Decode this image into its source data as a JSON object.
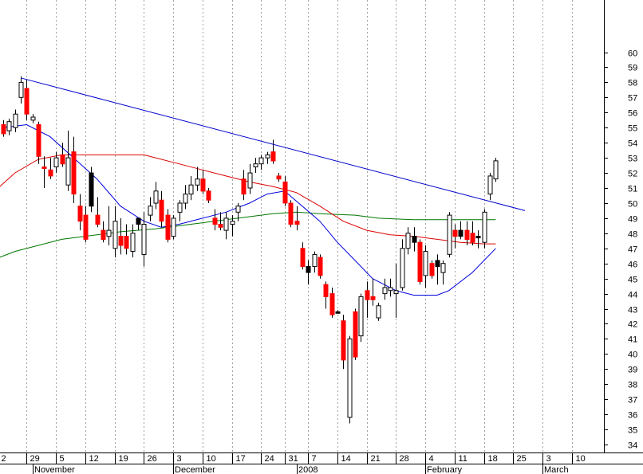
{
  "chart_data": {
    "type": "candlestick",
    "title": "",
    "ylim": [
      34,
      61
    ],
    "y_ticks": [
      34,
      35,
      36,
      37,
      38,
      39,
      40,
      41,
      42,
      43,
      44,
      45,
      46,
      47,
      48,
      49,
      50,
      51,
      52,
      53,
      54,
      55,
      56,
      57,
      58,
      59,
      60
    ],
    "y_tick_labels": [
      "34",
      "35",
      "36",
      "37",
      "38",
      "39",
      "40",
      "41",
      "42",
      "43",
      "44",
      "45",
      "46",
      "47",
      "48",
      "49",
      "50",
      "51",
      "52",
      "53",
      "54",
      "55",
      "56",
      "57",
      "58",
      "59",
      "60"
    ],
    "grid": "vertical dotted",
    "x_ticks": [
      {
        "label": "2",
        "slot": -1
      },
      {
        "label": "29",
        "slot": 4
      },
      {
        "label": "5",
        "slot": 9
      },
      {
        "label": "12",
        "slot": 14
      },
      {
        "label": "19",
        "slot": 19
      },
      {
        "label": "26",
        "slot": 24
      },
      {
        "label": "3",
        "slot": 29
      },
      {
        "label": "10",
        "slot": 34
      },
      {
        "label": "17",
        "slot": 39
      },
      {
        "label": "24",
        "slot": 44
      },
      {
        "label": "31",
        "slot": 48
      },
      {
        "label": "7",
        "slot": 52
      },
      {
        "label": "14",
        "slot": 57
      },
      {
        "label": "21",
        "slot": 62
      },
      {
        "label": "28",
        "slot": 67
      },
      {
        "label": "4",
        "slot": 72
      },
      {
        "label": "11",
        "slot": 77
      },
      {
        "label": "18",
        "slot": 82
      },
      {
        "label": "25",
        "slot": 87
      },
      {
        "label": "3",
        "slot": 92
      },
      {
        "label": "10",
        "slot": 97
      }
    ],
    "month_labels": [
      {
        "label": "November",
        "slot": 5
      },
      {
        "label": "December",
        "slot": 29
      },
      {
        "label": "2008",
        "slot": 50
      },
      {
        "label": "February",
        "slot": 72
      },
      {
        "label": "March",
        "slot": 92
      }
    ],
    "colors": {
      "up": "#ffffff",
      "down": "#ff0000",
      "special": "#000000",
      "wick": "#000000",
      "trendline": "#0000cc",
      "ma_short": "#0000dd",
      "ma_mid": "#dd0000",
      "ma_long": "#007700",
      "grid": "#a0a0a0"
    },
    "candles": [
      {
        "x": 0,
        "o": 54.6,
        "h": 55.5,
        "l": 54.4,
        "c": 55.2,
        "k": "down"
      },
      {
        "x": 1,
        "o": 54.8,
        "h": 55.6,
        "l": 54.5,
        "c": 55.4,
        "k": "up"
      },
      {
        "x": 2,
        "o": 55.0,
        "h": 56.2,
        "l": 54.7,
        "c": 55.9,
        "k": "up"
      },
      {
        "x": 3,
        "o": 57.0,
        "h": 58.4,
        "l": 56.6,
        "c": 58.0,
        "k": "up"
      },
      {
        "x": 4,
        "o": 57.6,
        "h": 58.2,
        "l": 55.5,
        "c": 55.9,
        "k": "down"
      },
      {
        "x": 5,
        "o": 55.7,
        "h": 55.9,
        "l": 55.3,
        "c": 55.5,
        "k": "up"
      },
      {
        "x": 6,
        "o": 55.2,
        "h": 55.4,
        "l": 52.6,
        "c": 53.1,
        "k": "down"
      },
      {
        "x": 7,
        "o": 52.4,
        "h": 53.1,
        "l": 51.0,
        "c": 52.3,
        "k": "down"
      },
      {
        "x": 8,
        "o": 52.2,
        "h": 53.0,
        "l": 51.6,
        "c": 51.8,
        "k": "down"
      },
      {
        "x": 9,
        "o": 52.4,
        "h": 53.4,
        "l": 52.0,
        "c": 53.0,
        "k": "up"
      },
      {
        "x": 10,
        "o": 53.2,
        "h": 54.0,
        "l": 52.4,
        "c": 52.6,
        "k": "down"
      },
      {
        "x": 11,
        "o": 51.2,
        "h": 54.8,
        "l": 50.8,
        "c": 53.0,
        "k": "up"
      },
      {
        "x": 12,
        "o": 53.4,
        "h": 54.4,
        "l": 50.0,
        "c": 50.6,
        "k": "down"
      },
      {
        "x": 13,
        "o": 49.8,
        "h": 50.6,
        "l": 48.2,
        "c": 48.8,
        "k": "down"
      },
      {
        "x": 14,
        "o": 49.2,
        "h": 49.8,
        "l": 47.4,
        "c": 47.6,
        "k": "down"
      },
      {
        "x": 15,
        "o": 49.8,
        "h": 52.4,
        "l": 49.4,
        "c": 52.0,
        "k": "special"
      },
      {
        "x": 16,
        "o": 49.2,
        "h": 50.4,
        "l": 48.4,
        "c": 48.6,
        "k": "down"
      },
      {
        "x": 17,
        "o": 48.2,
        "h": 48.8,
        "l": 47.4,
        "c": 47.6,
        "k": "down"
      },
      {
        "x": 18,
        "o": 47.8,
        "h": 49.8,
        "l": 47.2,
        "c": 48.2,
        "k": "up"
      },
      {
        "x": 19,
        "o": 47.0,
        "h": 49.8,
        "l": 46.4,
        "c": 48.8,
        "k": "up"
      },
      {
        "x": 20,
        "o": 47.8,
        "h": 49.0,
        "l": 46.6,
        "c": 47.2,
        "k": "down"
      },
      {
        "x": 21,
        "o": 47.8,
        "h": 48.6,
        "l": 46.6,
        "c": 47.0,
        "k": "down"
      },
      {
        "x": 22,
        "o": 46.8,
        "h": 48.6,
        "l": 46.4,
        "c": 48.0,
        "k": "up"
      },
      {
        "x": 23,
        "o": 48.6,
        "h": 49.0,
        "l": 48.2,
        "c": 49.0,
        "k": "special"
      },
      {
        "x": 24,
        "o": 46.6,
        "h": 49.4,
        "l": 45.8,
        "c": 48.6,
        "k": "up"
      },
      {
        "x": 25,
        "o": 49.2,
        "h": 50.4,
        "l": 48.8,
        "c": 49.8,
        "k": "up"
      },
      {
        "x": 26,
        "o": 50.0,
        "h": 51.4,
        "l": 49.6,
        "c": 50.8,
        "k": "up"
      },
      {
        "x": 27,
        "o": 50.2,
        "h": 50.8,
        "l": 48.4,
        "c": 48.8,
        "k": "down"
      },
      {
        "x": 28,
        "o": 49.2,
        "h": 49.6,
        "l": 47.4,
        "c": 47.6,
        "k": "down"
      },
      {
        "x": 29,
        "o": 47.8,
        "h": 49.2,
        "l": 47.6,
        "c": 49.0,
        "k": "up"
      },
      {
        "x": 30,
        "o": 49.4,
        "h": 50.2,
        "l": 48.8,
        "c": 50.0,
        "k": "up"
      },
      {
        "x": 31,
        "o": 50.0,
        "h": 51.2,
        "l": 49.6,
        "c": 50.6,
        "k": "up"
      },
      {
        "x": 32,
        "o": 50.6,
        "h": 51.8,
        "l": 50.2,
        "c": 51.2,
        "k": "up"
      },
      {
        "x": 33,
        "o": 51.2,
        "h": 52.4,
        "l": 50.8,
        "c": 51.6,
        "k": "up"
      },
      {
        "x": 34,
        "o": 51.6,
        "h": 52.2,
        "l": 50.6,
        "c": 50.8,
        "k": "down"
      },
      {
        "x": 35,
        "o": 50.8,
        "h": 51.0,
        "l": 50.0,
        "c": 50.2,
        "k": "down"
      },
      {
        "x": 36,
        "o": 49.0,
        "h": 49.6,
        "l": 48.2,
        "c": 48.6,
        "k": "down"
      },
      {
        "x": 37,
        "o": 48.6,
        "h": 49.4,
        "l": 48.2,
        "c": 48.4,
        "k": "down"
      },
      {
        "x": 38,
        "o": 48.2,
        "h": 49.4,
        "l": 47.6,
        "c": 49.0,
        "k": "up"
      },
      {
        "x": 39,
        "o": 48.6,
        "h": 49.2,
        "l": 47.8,
        "c": 48.8,
        "k": "up"
      },
      {
        "x": 40,
        "o": 49.4,
        "h": 50.0,
        "l": 48.8,
        "c": 49.8,
        "k": "up"
      },
      {
        "x": 41,
        "o": 51.6,
        "h": 52.2,
        "l": 50.2,
        "c": 50.6,
        "k": "down"
      },
      {
        "x": 42,
        "o": 51.0,
        "h": 52.6,
        "l": 50.6,
        "c": 52.0,
        "k": "up"
      },
      {
        "x": 43,
        "o": 52.4,
        "h": 53.0,
        "l": 52.0,
        "c": 52.6,
        "k": "up"
      },
      {
        "x": 44,
        "o": 52.6,
        "h": 53.2,
        "l": 52.2,
        "c": 53.0,
        "k": "up"
      },
      {
        "x": 45,
        "o": 53.0,
        "h": 53.4,
        "l": 52.6,
        "c": 53.2,
        "k": "up"
      },
      {
        "x": 46,
        "o": 53.4,
        "h": 54.2,
        "l": 52.6,
        "c": 52.8,
        "k": "down"
      },
      {
        "x": 47,
        "o": 51.8,
        "h": 52.0,
        "l": 51.4,
        "c": 51.6,
        "k": "down"
      },
      {
        "x": 48,
        "o": 51.4,
        "h": 51.8,
        "l": 49.8,
        "c": 50.0,
        "k": "down"
      },
      {
        "x": 49,
        "o": 50.0,
        "h": 50.2,
        "l": 48.4,
        "c": 48.6,
        "k": "down"
      },
      {
        "x": 50,
        "o": 48.8,
        "h": 49.8,
        "l": 48.2,
        "c": 48.6,
        "k": "down"
      },
      {
        "x": 51,
        "o": 47.0,
        "h": 47.4,
        "l": 45.6,
        "c": 45.8,
        "k": "down"
      },
      {
        "x": 52,
        "o": 45.8,
        "h": 46.2,
        "l": 44.6,
        "c": 45.4,
        "k": "special"
      },
      {
        "x": 53,
        "o": 45.8,
        "h": 46.8,
        "l": 45.4,
        "c": 46.6,
        "k": "up"
      },
      {
        "x": 54,
        "o": 46.4,
        "h": 46.6,
        "l": 45.0,
        "c": 45.2,
        "k": "down"
      },
      {
        "x": 55,
        "o": 44.6,
        "h": 44.8,
        "l": 43.0,
        "c": 43.8,
        "k": "down"
      },
      {
        "x": 56,
        "o": 44.0,
        "h": 44.4,
        "l": 42.4,
        "c": 42.6,
        "k": "down"
      },
      {
        "x": 57,
        "o": 42.8,
        "h": 42.9,
        "l": 42.7,
        "c": 42.8,
        "k": "special"
      },
      {
        "x": 58,
        "o": 42.2,
        "h": 42.6,
        "l": 39.0,
        "c": 39.6,
        "k": "down"
      },
      {
        "x": 59,
        "o": 35.8,
        "h": 41.2,
        "l": 35.4,
        "c": 41.0,
        "k": "up"
      },
      {
        "x": 60,
        "o": 42.8,
        "h": 43.0,
        "l": 39.6,
        "c": 39.8,
        "k": "down"
      },
      {
        "x": 61,
        "o": 41.2,
        "h": 44.0,
        "l": 40.8,
        "c": 43.8,
        "k": "up"
      },
      {
        "x": 62,
        "o": 43.6,
        "h": 44.8,
        "l": 42.4,
        "c": 44.2,
        "k": "down"
      },
      {
        "x": 63,
        "o": 43.6,
        "h": 45.0,
        "l": 43.2,
        "c": 43.8,
        "k": "down"
      },
      {
        "x": 64,
        "o": 42.4,
        "h": 43.4,
        "l": 42.2,
        "c": 43.2,
        "k": "up"
      },
      {
        "x": 65,
        "o": 44.0,
        "h": 45.0,
        "l": 43.6,
        "c": 44.4,
        "k": "up"
      },
      {
        "x": 66,
        "o": 44.2,
        "h": 45.0,
        "l": 43.8,
        "c": 44.4,
        "k": "up"
      },
      {
        "x": 67,
        "o": 44.0,
        "h": 46.0,
        "l": 42.4,
        "c": 44.2,
        "k": "up"
      },
      {
        "x": 68,
        "o": 44.4,
        "h": 47.6,
        "l": 44.2,
        "c": 47.0,
        "k": "up"
      },
      {
        "x": 69,
        "o": 47.0,
        "h": 48.4,
        "l": 46.6,
        "c": 48.0,
        "k": "up"
      },
      {
        "x": 70,
        "o": 47.8,
        "h": 48.4,
        "l": 46.8,
        "c": 47.4,
        "k": "special"
      },
      {
        "x": 71,
        "o": 47.4,
        "h": 47.6,
        "l": 44.6,
        "c": 44.8,
        "k": "down"
      },
      {
        "x": 72,
        "o": 45.2,
        "h": 47.2,
        "l": 44.4,
        "c": 46.8,
        "k": "up"
      },
      {
        "x": 73,
        "o": 46.0,
        "h": 46.2,
        "l": 45.0,
        "c": 45.2,
        "k": "down"
      },
      {
        "x": 74,
        "o": 45.8,
        "h": 46.6,
        "l": 44.6,
        "c": 46.2,
        "k": "special"
      },
      {
        "x": 75,
        "o": 45.4,
        "h": 46.2,
        "l": 44.6,
        "c": 46.0,
        "k": "up"
      },
      {
        "x": 76,
        "o": 46.6,
        "h": 49.4,
        "l": 46.4,
        "c": 49.2,
        "k": "up"
      },
      {
        "x": 77,
        "o": 47.8,
        "h": 48.6,
        "l": 47.0,
        "c": 48.2,
        "k": "down"
      },
      {
        "x": 78,
        "o": 48.2,
        "h": 48.8,
        "l": 47.6,
        "c": 47.8,
        "k": "special"
      },
      {
        "x": 79,
        "o": 48.2,
        "h": 48.8,
        "l": 47.2,
        "c": 47.6,
        "k": "down"
      },
      {
        "x": 80,
        "o": 48.0,
        "h": 48.8,
        "l": 47.2,
        "c": 47.4,
        "k": "down"
      },
      {
        "x": 81,
        "o": 47.8,
        "h": 48.2,
        "l": 47.0,
        "c": 47.8,
        "k": "special"
      },
      {
        "x": 82,
        "o": 47.4,
        "h": 49.6,
        "l": 47.0,
        "c": 49.4,
        "k": "up"
      },
      {
        "x": 83,
        "o": 50.6,
        "h": 52.0,
        "l": 50.2,
        "c": 51.8,
        "k": "up"
      },
      {
        "x": 84,
        "o": 51.6,
        "h": 53.0,
        "l": 51.4,
        "c": 52.8,
        "k": "up"
      }
    ],
    "trendline": {
      "from": {
        "slot": 3,
        "value": 58.3
      },
      "to": {
        "slot": 89,
        "value": 49.5
      }
    },
    "ma_short": [
      [
        0,
        55.0
      ],
      [
        4,
        55.2
      ],
      [
        8,
        54.4
      ],
      [
        12,
        53.0
      ],
      [
        16,
        51.6
      ],
      [
        20,
        49.8
      ],
      [
        24,
        48.8
      ],
      [
        27,
        48.4
      ],
      [
        30,
        48.6
      ],
      [
        34,
        49.0
      ],
      [
        38,
        49.4
      ],
      [
        42,
        50.0
      ],
      [
        45,
        50.6
      ],
      [
        48,
        50.8
      ],
      [
        51,
        49.8
      ],
      [
        54,
        48.8
      ],
      [
        57,
        47.4
      ],
      [
        60,
        46.2
      ],
      [
        63,
        45.0
      ],
      [
        67,
        44.2
      ],
      [
        70,
        43.9
      ],
      [
        74,
        43.9
      ],
      [
        76,
        44.2
      ],
      [
        80,
        45.4
      ],
      [
        84,
        47.0
      ]
    ],
    "ma_mid": [
      [
        -2,
        50.6
      ],
      [
        2,
        52.0
      ],
      [
        6,
        52.9
      ],
      [
        10,
        53.2
      ],
      [
        16,
        53.2
      ],
      [
        20,
        53.2
      ],
      [
        24,
        53.2
      ],
      [
        30,
        52.6
      ],
      [
        34,
        52.2
      ],
      [
        38,
        51.8
      ],
      [
        42,
        51.4
      ],
      [
        46,
        51.1
      ],
      [
        50,
        50.7
      ],
      [
        54,
        49.8
      ],
      [
        58,
        48.8
      ],
      [
        62,
        48.2
      ],
      [
        66,
        47.9
      ],
      [
        70,
        47.8
      ],
      [
        74,
        47.6
      ],
      [
        78,
        47.4
      ],
      [
        82,
        47.3
      ],
      [
        84,
        47.3
      ]
    ],
    "ma_long": [
      [
        -2,
        46.2
      ],
      [
        2,
        46.8
      ],
      [
        6,
        47.2
      ],
      [
        10,
        47.6
      ],
      [
        14,
        47.8
      ],
      [
        20,
        48.1
      ],
      [
        26,
        48.3
      ],
      [
        32,
        48.6
      ],
      [
        38,
        48.9
      ],
      [
        42,
        49.1
      ],
      [
        46,
        49.3
      ],
      [
        50,
        49.4
      ],
      [
        54,
        49.3
      ],
      [
        60,
        49.2
      ],
      [
        64,
        49.0
      ],
      [
        70,
        48.9
      ],
      [
        76,
        48.9
      ],
      [
        82,
        48.9
      ],
      [
        84,
        48.9
      ]
    ]
  }
}
